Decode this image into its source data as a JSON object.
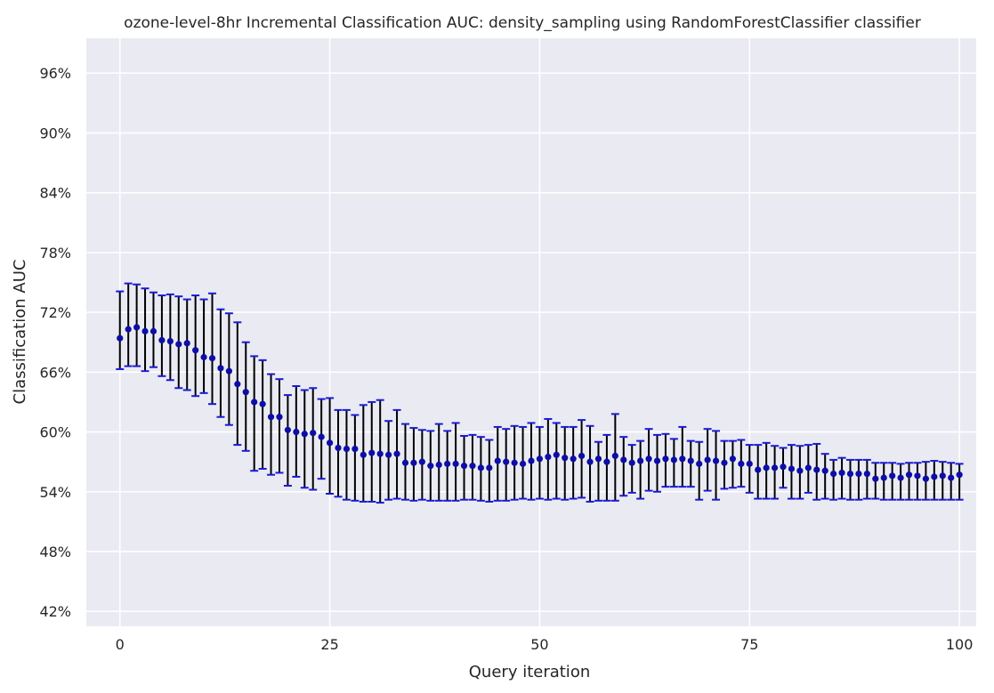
{
  "chart_data": {
    "type": "scatter",
    "title": "ozone-level-8hr Incremental Classification AUC: density_sampling using RandomForestClassifier classifier",
    "xlabel": "Query iteration",
    "ylabel": "Classification AUC",
    "xlim": [
      -4,
      102
    ],
    "ylim": [
      40.5,
      99.5
    ],
    "xticks": [
      0,
      25,
      50,
      75,
      100
    ],
    "xtick_labels": [
      "0",
      "25",
      "50",
      "75",
      "100"
    ],
    "yticks": [
      42,
      48,
      54,
      60,
      66,
      72,
      78,
      84,
      90,
      96
    ],
    "ytick_labels": [
      "42%",
      "48%",
      "54%",
      "60%",
      "66%",
      "72%",
      "78%",
      "84%",
      "90%",
      "96%"
    ],
    "grid": true,
    "background_color": "#eaeaf2",
    "point_color": "#0d0da8",
    "errorbar_color": "#000000",
    "cap_color": "#1a1ad8",
    "x": [
      0,
      1,
      2,
      3,
      4,
      5,
      6,
      7,
      8,
      9,
      10,
      11,
      12,
      13,
      14,
      15,
      16,
      17,
      18,
      19,
      20,
      21,
      22,
      23,
      24,
      25,
      26,
      27,
      28,
      29,
      30,
      31,
      32,
      33,
      34,
      35,
      36,
      37,
      38,
      39,
      40,
      41,
      42,
      43,
      44,
      45,
      46,
      47,
      48,
      49,
      50,
      51,
      52,
      53,
      54,
      55,
      56,
      57,
      58,
      59,
      60,
      61,
      62,
      63,
      64,
      65,
      66,
      67,
      68,
      69,
      70,
      71,
      72,
      73,
      74,
      75,
      76,
      77,
      78,
      79,
      80,
      81,
      82,
      83,
      84,
      85,
      86,
      87,
      88,
      89,
      90,
      91,
      92,
      93,
      94,
      95,
      96,
      97,
      98,
      99,
      100
    ],
    "y": [
      69.4,
      70.3,
      70.5,
      70.1,
      70.1,
      69.2,
      69.1,
      68.8,
      68.9,
      68.2,
      67.5,
      67.4,
      66.4,
      66.1,
      64.8,
      64.0,
      63.0,
      62.8,
      61.5,
      61.5,
      60.2,
      60.0,
      59.8,
      59.9,
      59.5,
      58.9,
      58.4,
      58.3,
      58.3,
      57.7,
      57.9,
      57.8,
      57.7,
      57.8,
      56.9,
      56.9,
      57.0,
      56.6,
      56.7,
      56.8,
      56.8,
      56.6,
      56.6,
      56.4,
      56.4,
      57.1,
      57.0,
      56.9,
      56.8,
      57.1,
      57.3,
      57.5,
      57.7,
      57.4,
      57.3,
      57.6,
      57.0,
      57.3,
      57.0,
      57.6,
      57.2,
      56.9,
      57.1,
      57.3,
      57.1,
      57.3,
      57.2,
      57.3,
      57.1,
      56.8,
      57.2,
      57.1,
      56.9,
      57.3,
      56.8,
      56.8,
      56.2,
      56.4,
      56.4,
      56.5,
      56.3,
      56.1,
      56.4,
      56.2,
      56.1,
      55.8,
      55.9,
      55.8,
      55.8,
      55.8,
      55.3,
      55.4,
      55.6,
      55.4,
      55.7,
      55.6,
      55.3,
      55.5,
      55.6,
      55.4,
      55.7
    ],
    "y_upper": [
      74.1,
      74.9,
      74.8,
      74.4,
      74.0,
      73.7,
      73.8,
      73.6,
      73.3,
      73.7,
      73.3,
      73.9,
      72.3,
      71.9,
      71.0,
      69.0,
      67.6,
      67.2,
      65.8,
      65.3,
      63.7,
      64.6,
      64.2,
      64.4,
      63.3,
      63.4,
      62.2,
      62.2,
      61.7,
      62.7,
      63.0,
      63.2,
      61.1,
      62.2,
      60.8,
      60.4,
      60.2,
      60.1,
      60.8,
      60.1,
      60.9,
      59.6,
      59.7,
      59.5,
      59.2,
      60.5,
      60.3,
      60.6,
      60.5,
      60.9,
      60.5,
      61.3,
      60.9,
      60.5,
      60.5,
      61.2,
      60.6,
      59.0,
      59.7,
      61.8,
      59.5,
      58.7,
      59.1,
      60.3,
      59.7,
      59.8,
      59.3,
      60.5,
      59.1,
      59.0,
      60.3,
      60.1,
      59.1,
      59.1,
      59.2,
      58.7,
      58.7,
      58.9,
      58.6,
      58.4,
      58.7,
      58.6,
      58.7,
      58.8,
      57.8,
      57.2,
      57.4,
      57.2,
      57.2,
      57.2,
      56.9,
      56.9,
      56.9,
      56.8,
      56.9,
      56.9,
      57.0,
      57.1,
      57.0,
      56.9,
      56.8
    ],
    "y_lower": [
      66.3,
      66.6,
      66.6,
      66.1,
      66.5,
      65.6,
      65.2,
      64.4,
      64.2,
      63.6,
      63.9,
      62.8,
      61.5,
      60.7,
      58.7,
      58.1,
      56.1,
      56.3,
      55.7,
      55.9,
      54.6,
      55.5,
      54.4,
      54.2,
      55.3,
      53.8,
      53.5,
      53.2,
      53.1,
      53.0,
      53.0,
      52.9,
      53.2,
      53.3,
      53.2,
      53.1,
      53.2,
      53.1,
      53.1,
      53.1,
      53.1,
      53.2,
      53.2,
      53.1,
      53.0,
      53.1,
      53.1,
      53.2,
      53.3,
      53.2,
      53.3,
      53.2,
      53.3,
      53.2,
      53.3,
      53.4,
      53.0,
      53.1,
      53.1,
      53.1,
      53.6,
      53.9,
      53.3,
      54.1,
      54.0,
      54.5,
      54.5,
      54.5,
      54.5,
      53.2,
      54.1,
      53.2,
      54.3,
      54.4,
      54.5,
      53.9,
      53.3,
      53.3,
      53.3,
      54.4,
      53.3,
      53.3,
      53.9,
      53.2,
      53.3,
      53.2,
      53.3,
      53.2,
      53.2,
      53.3,
      53.3,
      53.2,
      53.2,
      53.2,
      53.2,
      53.2,
      53.2,
      53.2,
      53.2,
      53.2,
      53.2
    ]
  }
}
